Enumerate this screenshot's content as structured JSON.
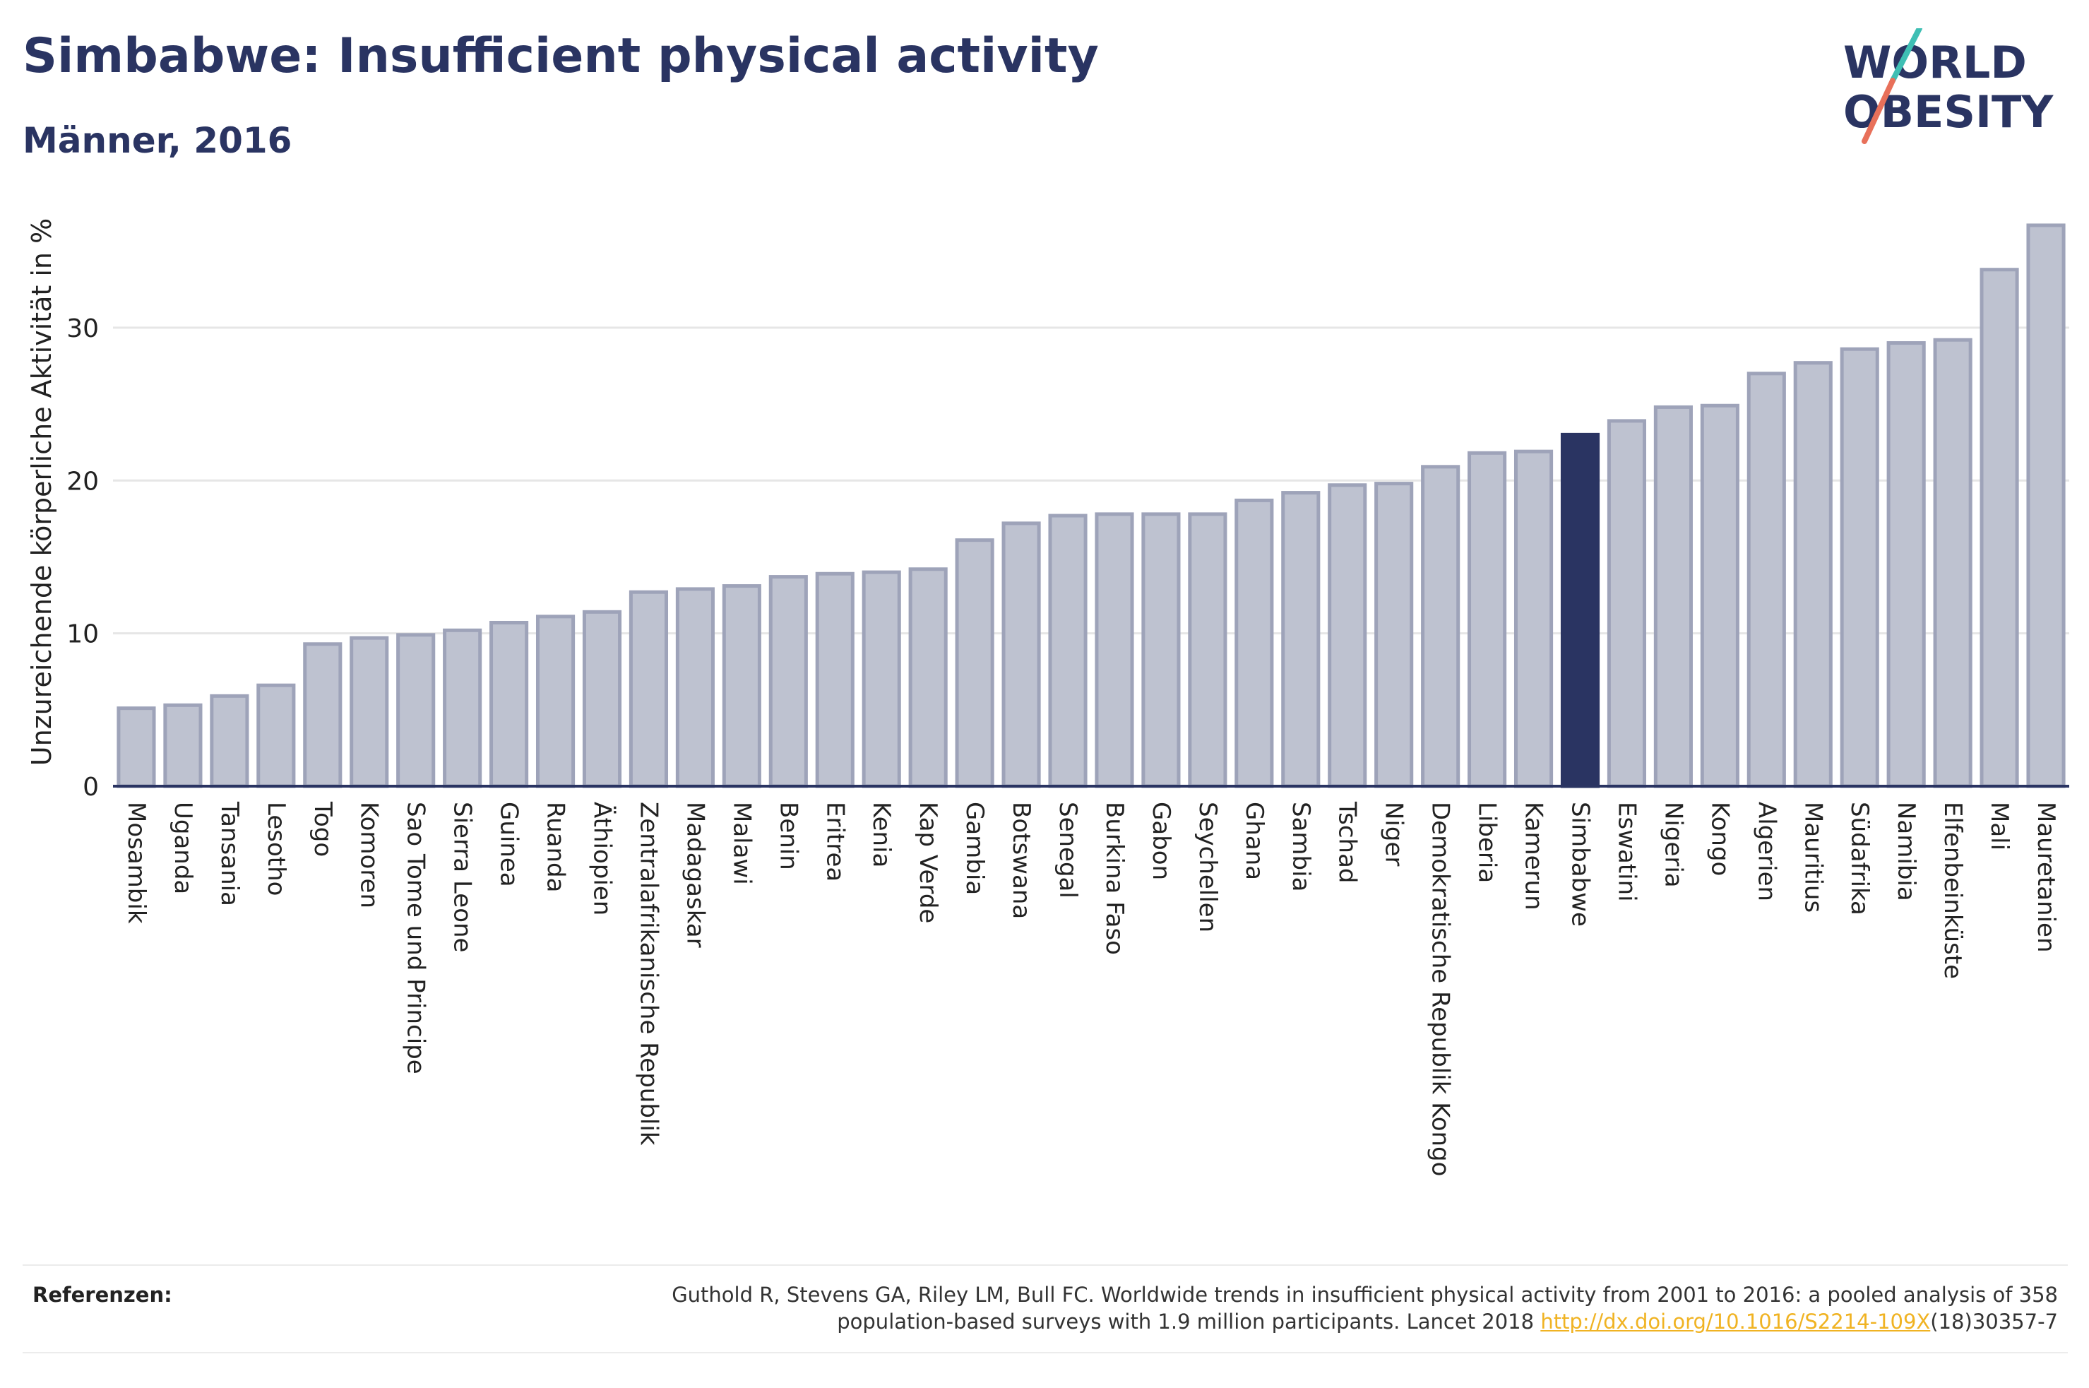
{
  "header": {
    "title": "Simbabwe: Insufficient physical activity",
    "subtitle": "Männer, 2016"
  },
  "logo": {
    "line1": "WORLD",
    "line2": "OBESITY",
    "colors": {
      "text": "#2a3462",
      "slash_top": "#3fbfb4",
      "slash_bottom": "#e8705a"
    }
  },
  "colors": {
    "bar_fill": "#bec2d0",
    "bar_stroke": "#9ea3b9",
    "highlight": "#2a3462",
    "axis": "#2a3462",
    "grid": "#e6e6e6",
    "link": "#f0b323"
  },
  "chart_data": {
    "type": "bar",
    "ylabel": "Unzureichende körperliche Aktivität in %",
    "ylim": [
      0,
      38.5
    ],
    "yticks": [
      0,
      10,
      20,
      30
    ],
    "grid": true,
    "highlight": "Simbabwe",
    "categories": [
      "Mosambik",
      "Uganda",
      "Tansania",
      "Lesotho",
      "Togo",
      "Komoren",
      "Sao Tome und Principe",
      "Sierra Leone",
      "Guinea",
      "Ruanda",
      "Äthiopien",
      "Zentralafrikanische Republik",
      "Madagaskar",
      "Malawi",
      "Benin",
      "Eritrea",
      "Kenia",
      "Kap Verde",
      "Gambia",
      "Botswana",
      "Senegal",
      "Burkina Faso",
      "Gabon",
      "Seychellen",
      "Ghana",
      "Sambia",
      "Tschad",
      "Niger",
      "Demokratische Republik Kongo",
      "Liberia",
      "Kamerun",
      "Simbabwe",
      "Eswatini",
      "Nigeria",
      "Kongo",
      "Algerien",
      "Mauritius",
      "Südafrika",
      "Namibia",
      "Elfenbeinküste",
      "Mali",
      "Mauretanien"
    ],
    "values": [
      5.1,
      5.3,
      5.9,
      6.6,
      9.3,
      9.7,
      9.9,
      10.2,
      10.7,
      11.1,
      11.4,
      12.7,
      12.9,
      13.1,
      13.7,
      13.9,
      14.0,
      14.2,
      16.1,
      17.2,
      17.7,
      17.8,
      17.8,
      17.8,
      18.7,
      19.2,
      19.7,
      19.8,
      20.9,
      21.8,
      21.9,
      23.0,
      23.9,
      24.8,
      24.9,
      27.0,
      27.7,
      28.6,
      29.0,
      29.2,
      33.8,
      36.7
    ]
  },
  "references": {
    "label": "Referenzen:",
    "line1": "Guthold R, Stevens GA, Riley LM, Bull FC. Worldwide trends in insufficient physical activity from 2001 to 2016: a pooled analysis of 358",
    "line2_prefix": "population-based surveys with 1.9 million participants. Lancet 2018 ",
    "link_text": "http://dx.doi.org/10.1016/S2214-109X",
    "line2_suffix": "(18)30357-7"
  }
}
